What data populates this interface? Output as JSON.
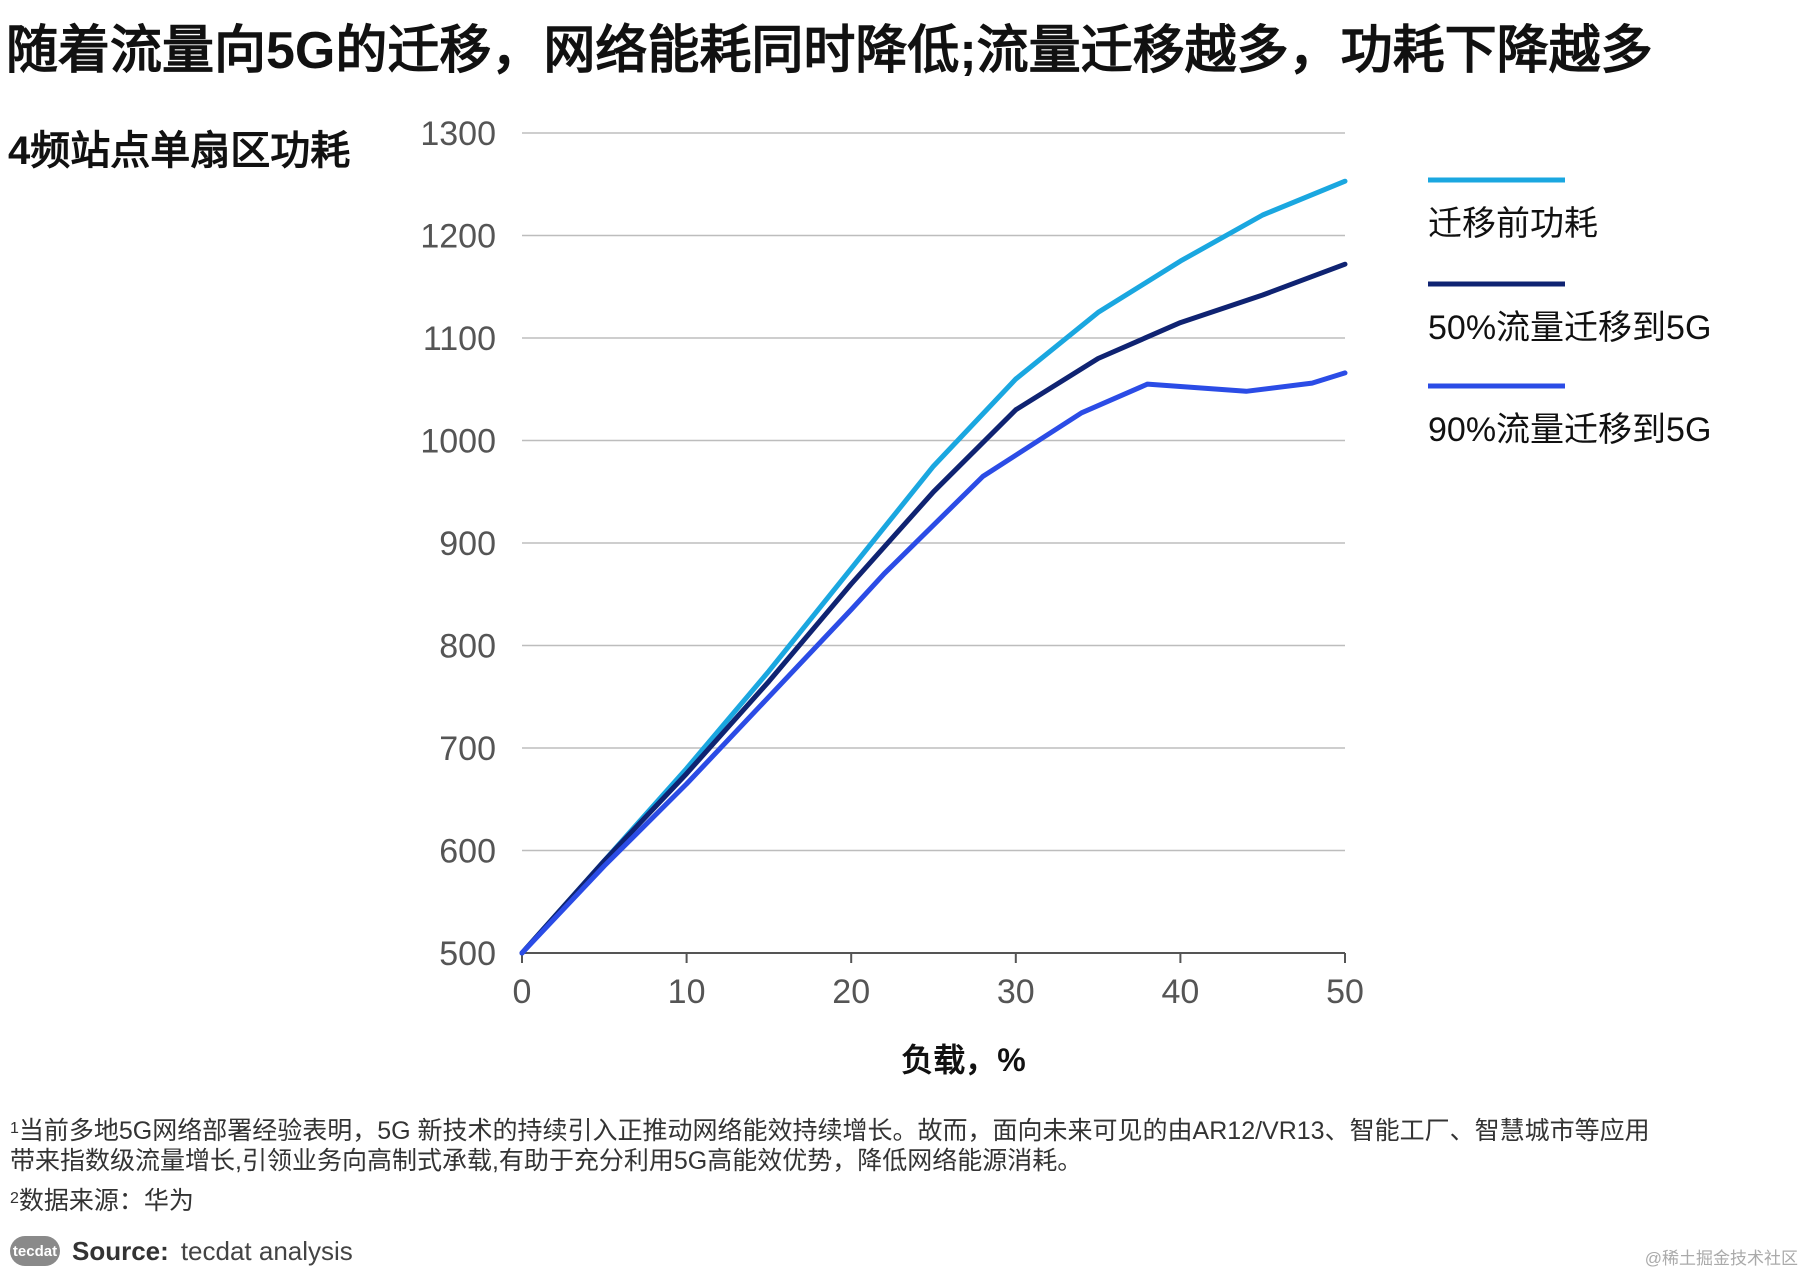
{
  "page": {
    "title": "随着流量向5G的迁移，网络能耗同时降低;流量迁移越多，功耗下降越多",
    "subtitle": "4频站点单扇区功耗",
    "footnotes": [
      {
        "marker": "1",
        "line1": "当前多地5G网络部署经验表明，5G 新技术的持续引入正推动网络能效持续增长。故而，面向未来可见的由AR12/VR13、智能工厂、智慧城市等应用",
        "line2": "带来指数级流量增长,引领业务向高制式承载,有助于充分利用5G高能效优势，降低网络能源消耗。"
      },
      {
        "marker": "2",
        "line1": "数据来源：华为"
      }
    ],
    "source": {
      "logo_text": "tecdat",
      "label": "Source:",
      "value": "tecdat analysis"
    },
    "watermark": "@稀土掘金技术社区"
  },
  "chart_data": {
    "type": "line",
    "title": "4频站点单扇区功耗",
    "xlabel": "负载，%",
    "ylabel": "",
    "xlim": [
      0,
      50
    ],
    "ylim": [
      500,
      1300
    ],
    "xticks": [
      0,
      10,
      20,
      30,
      40,
      50
    ],
    "yticks": [
      500,
      600,
      700,
      800,
      900,
      1000,
      1100,
      1200,
      1300
    ],
    "grid": true,
    "legend_position": "right",
    "series": [
      {
        "name": "迁移前功耗",
        "color": "#1aa7e0",
        "x": [
          0,
          5,
          10,
          15,
          20,
          25,
          30,
          35,
          40,
          45,
          50
        ],
        "y": [
          500,
          590,
          680,
          775,
          875,
          975,
          1060,
          1125,
          1175,
          1220,
          1253
        ]
      },
      {
        "name": "50%流量迁移到5G",
        "color": "#0f2372",
        "x": [
          0,
          5,
          10,
          15,
          20,
          25,
          30,
          35,
          40,
          45,
          50
        ],
        "y": [
          500,
          590,
          675,
          765,
          860,
          950,
          1030,
          1080,
          1115,
          1142,
          1172
        ]
      },
      {
        "name": "90%流量迁移到5G",
        "color": "#2b4ce6",
        "x": [
          0,
          5,
          10,
          15,
          20,
          22,
          28,
          34,
          38,
          44,
          48,
          50
        ],
        "y": [
          500,
          585,
          665,
          750,
          835,
          870,
          965,
          1027,
          1055,
          1048,
          1056,
          1066
        ]
      }
    ]
  }
}
